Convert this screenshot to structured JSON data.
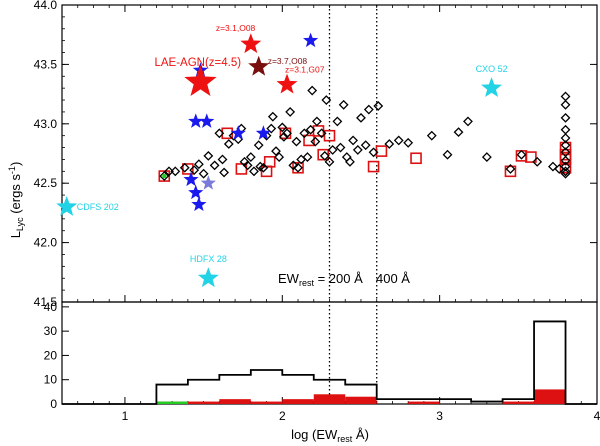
{
  "chart_data": [
    {
      "type": "scatter",
      "panel": "top",
      "xlim": [
        0.6,
        4.0
      ],
      "ylim": [
        41.5,
        44.0
      ],
      "ylabel": "L_Lyc (ergs s^-1)",
      "ylabel_main": "L",
      "ylabel_sub": "Lyc",
      "ylabel_rest": " (ergs s",
      "ylabel_sup": "-1",
      "ylabel_end": ")",
      "yticks": [
        41.5,
        42.0,
        42.5,
        43.0,
        43.5,
        44.0
      ],
      "ytick_labels": [
        "41.5",
        "42.0",
        "42.5",
        "43.0",
        "43.5",
        "44.0"
      ],
      "vlines": [
        2.3,
        2.6
      ],
      "vline_label": {
        "prefix": "EW",
        "sub": "rest",
        "mid": " = ",
        "first": "200 Å",
        "second": "400 Å"
      },
      "colors": {
        "lae": "#000000",
        "lae_box": "#dd1111",
        "blue_star": "#1a1aee",
        "cyan_star": "#22d3e6",
        "red_star": "#ee1111",
        "darkred_star": "#7a0e0e",
        "grey_blue_star": "#7a7ad8",
        "green": "#22cc22"
      },
      "lae_points": [
        [
          1.25,
          42.56
        ],
        [
          1.28,
          42.6
        ],
        [
          1.32,
          42.6
        ],
        [
          1.38,
          42.63
        ],
        [
          1.44,
          42.61
        ],
        [
          1.47,
          42.66
        ],
        [
          1.5,
          42.58
        ],
        [
          1.53,
          42.73
        ],
        [
          1.57,
          42.65
        ],
        [
          1.6,
          42.92
        ],
        [
          1.62,
          42.7
        ],
        [
          1.63,
          42.59
        ],
        [
          1.66,
          42.83
        ],
        [
          1.69,
          42.9
        ],
        [
          1.72,
          42.87
        ],
        [
          1.74,
          42.96
        ],
        [
          1.76,
          42.68
        ],
        [
          1.78,
          42.65
        ],
        [
          1.8,
          42.72
        ],
        [
          1.82,
          42.6
        ],
        [
          1.85,
          42.82
        ],
        [
          1.86,
          42.64
        ],
        [
          1.88,
          42.63
        ],
        [
          1.9,
          42.9
        ],
        [
          1.93,
          42.96
        ],
        [
          1.94,
          43.06
        ],
        [
          1.96,
          42.77
        ],
        [
          1.98,
          42.72
        ],
        [
          2.0,
          42.97
        ],
        [
          2.01,
          42.89
        ],
        [
          2.03,
          42.92
        ],
        [
          2.05,
          43.1
        ],
        [
          2.07,
          42.65
        ],
        [
          2.09,
          42.85
        ],
        [
          2.1,
          42.63
        ],
        [
          2.12,
          42.7
        ],
        [
          2.14,
          42.92
        ],
        [
          2.16,
          42.72
        ],
        [
          2.18,
          42.95
        ],
        [
          2.19,
          43.28
        ],
        [
          2.21,
          42.85
        ],
        [
          2.22,
          43.02
        ],
        [
          2.25,
          42.92
        ],
        [
          2.27,
          42.73
        ],
        [
          2.28,
          43.2
        ],
        [
          2.3,
          42.68
        ],
        [
          2.32,
          42.78
        ],
        [
          2.35,
          43.02
        ],
        [
          2.37,
          42.8
        ],
        [
          2.39,
          43.16
        ],
        [
          2.41,
          42.72
        ],
        [
          2.43,
          42.68
        ],
        [
          2.45,
          42.86
        ],
        [
          2.48,
          42.78
        ],
        [
          2.5,
          43.05
        ],
        [
          2.53,
          42.82
        ],
        [
          2.55,
          43.12
        ],
        [
          2.58,
          42.76
        ],
        [
          2.61,
          43.15
        ],
        [
          2.68,
          42.83
        ],
        [
          2.74,
          42.86
        ],
        [
          2.8,
          42.84
        ],
        [
          2.95,
          42.9
        ],
        [
          3.05,
          42.74
        ],
        [
          3.12,
          42.93
        ],
        [
          3.18,
          43.02
        ],
        [
          3.3,
          42.72
        ],
        [
          3.45,
          42.62
        ],
        [
          3.52,
          42.74
        ],
        [
          3.62,
          42.68
        ],
        [
          3.72,
          42.64
        ],
        [
          3.76,
          42.62
        ],
        [
          3.8,
          43.23
        ],
        [
          3.8,
          43.16
        ],
        [
          3.8,
          43.05
        ],
        [
          3.8,
          42.95
        ],
        [
          3.8,
          42.88
        ],
        [
          3.8,
          42.82
        ],
        [
          3.8,
          42.76
        ],
        [
          3.8,
          42.69
        ],
        [
          3.8,
          42.64
        ],
        [
          3.8,
          42.6
        ],
        [
          3.8,
          42.58
        ]
      ],
      "boxed_points": [
        [
          1.25,
          42.56
        ],
        [
          1.4,
          42.62
        ],
        [
          1.65,
          42.92
        ],
        [
          1.74,
          42.62
        ],
        [
          1.9,
          42.6
        ],
        [
          1.92,
          42.68
        ],
        [
          2.02,
          42.92
        ],
        [
          2.1,
          42.63
        ],
        [
          2.17,
          42.86
        ],
        [
          2.23,
          42.94
        ],
        [
          2.26,
          42.74
        ],
        [
          2.3,
          42.9
        ],
        [
          2.58,
          42.64
        ],
        [
          2.63,
          42.77
        ],
        [
          2.85,
          42.71
        ],
        [
          3.45,
          42.6
        ],
        [
          3.52,
          42.73
        ],
        [
          3.58,
          42.72
        ],
        [
          3.8,
          42.8
        ],
        [
          3.8,
          42.74
        ],
        [
          3.8,
          42.7
        ],
        [
          3.8,
          42.63
        ]
      ],
      "blue_stars": [
        [
          1.45,
          43.02
        ],
        [
          1.52,
          43.02
        ],
        [
          1.48,
          43.45
        ],
        [
          1.42,
          42.53
        ],
        [
          1.45,
          42.42
        ],
        [
          1.47,
          42.32
        ],
        [
          1.72,
          42.92
        ],
        [
          1.88,
          42.92
        ],
        [
          2.18,
          43.7
        ]
      ],
      "grey_blue_stars": [
        [
          1.53,
          42.5
        ]
      ],
      "cyan_stars": [
        {
          "x": 0.63,
          "y": 42.3,
          "label": "CDFS 202"
        },
        {
          "x": 1.53,
          "y": 41.7,
          "label": "HDFX 28"
        },
        {
          "x": 3.33,
          "y": 43.3,
          "label": "CXO 52"
        }
      ],
      "red_stars": [
        {
          "x": 1.48,
          "y": 43.35,
          "label": "LAE-AGN(z=4.5)",
          "big": true
        },
        {
          "x": 1.8,
          "y": 43.67,
          "label": "z=3.1,O08",
          "big": false
        },
        {
          "x": 2.03,
          "y": 43.33,
          "label": "z=3.1,G07",
          "big": false
        }
      ],
      "darkred_stars": [
        {
          "x": 1.85,
          "y": 43.48,
          "label": "z=3.7,O08"
        }
      ]
    },
    {
      "type": "histogram",
      "panel": "bottom",
      "xlabel": "log (EW_rest Å)",
      "xlabel_main": "log (EW",
      "xlabel_sub": "rest",
      "xlabel_end": " Å)",
      "xlim": [
        0.6,
        4.0
      ],
      "ylim": [
        0,
        42
      ],
      "xticks": [
        1,
        2,
        3,
        4
      ],
      "xtick_labels": [
        "1",
        "2",
        "3",
        "4"
      ],
      "yticks": [
        0,
        10,
        20,
        30,
        40
      ],
      "ytick_labels": [
        "0",
        "10",
        "20",
        "30",
        "40"
      ],
      "bin_edges": [
        1.2,
        1.4,
        1.6,
        1.8,
        2.0,
        2.2,
        2.4,
        2.6,
        2.8,
        3.0,
        3.2,
        3.4,
        3.6,
        3.8
      ],
      "series": [
        {
          "name": "all",
          "style": "outline",
          "values": [
            8,
            10,
            12,
            14,
            12,
            10,
            8,
            2,
            2,
            2,
            1,
            2,
            34
          ]
        },
        {
          "name": "boxed",
          "style": "fill",
          "values": [
            1,
            1,
            2,
            1,
            2,
            4,
            3,
            0,
            1,
            0,
            0,
            1,
            6
          ]
        },
        {
          "name": "green",
          "style": "fill",
          "values": [
            1,
            0,
            0,
            0,
            0,
            0,
            0,
            0,
            0,
            0,
            0,
            0,
            0
          ]
        }
      ]
    }
  ]
}
